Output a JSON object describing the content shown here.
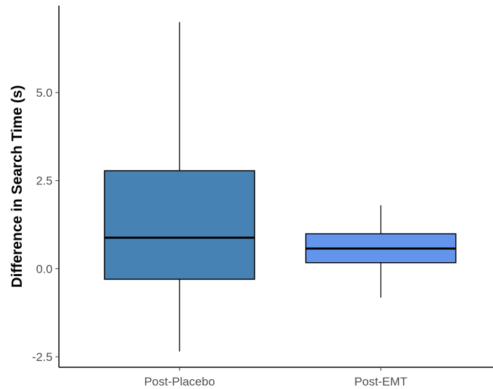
{
  "chart_data": {
    "type": "box",
    "title": "",
    "xlabel": "",
    "ylabel": "Difference in Search Time (s)",
    "ylim": [
      -2.8,
      7.5
    ],
    "yticks": [
      -2.5,
      0.0,
      2.5,
      5.0
    ],
    "ytick_labels": [
      "-2.5",
      "0.0",
      "2.5",
      "5.0"
    ],
    "grid": false,
    "legend": "none",
    "categories": [
      "Post-Placebo",
      "Post-EMT"
    ],
    "boxes": [
      {
        "category": "Post-Placebo",
        "min": -2.35,
        "q1": -0.3,
        "median": 0.88,
        "q3": 2.78,
        "max": 7.0,
        "color": "#4682b4"
      },
      {
        "category": "Post-EMT",
        "min": -0.82,
        "q1": 0.17,
        "median": 0.57,
        "q3": 0.99,
        "max": 1.8,
        "color": "#6495ed"
      }
    ]
  }
}
